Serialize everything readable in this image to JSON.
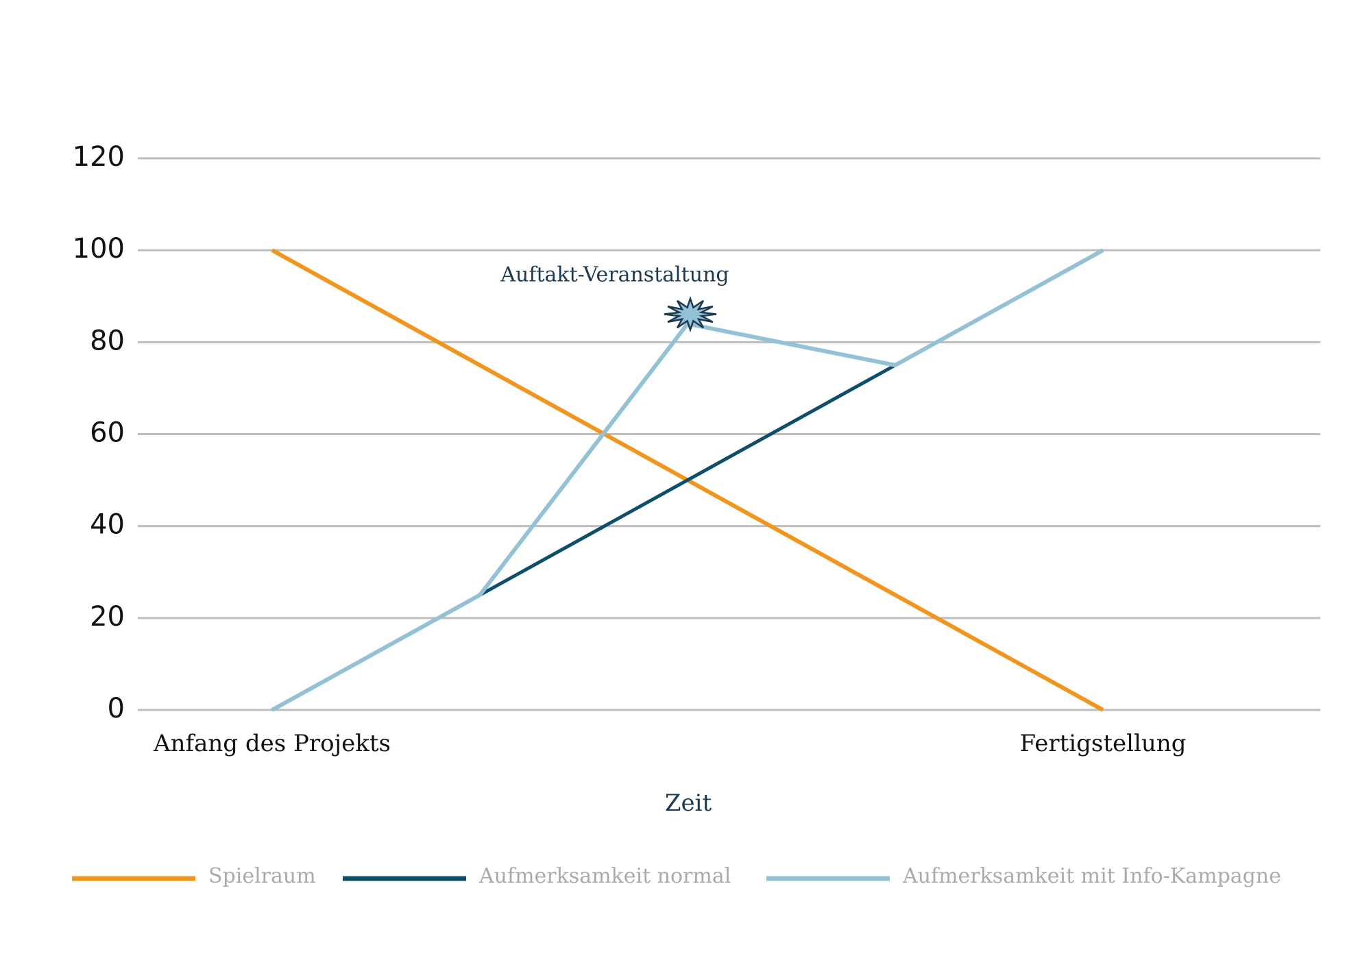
{
  "chart_data": {
    "type": "line",
    "x_label": "Zeit",
    "categories": [
      "Anfang des Projekts",
      null,
      null,
      null,
      "Fertigstellung"
    ],
    "series": [
      {
        "name": "Spielraum",
        "color": "#f0961e",
        "values": [
          100,
          75,
          50,
          25,
          0
        ]
      },
      {
        "name": "Aufmerksamkeit normal",
        "color": "#0d4f6a",
        "values": [
          0,
          25,
          50,
          75,
          100
        ]
      },
      {
        "name": "Aufmerksamkeit mit Info-Kampagne",
        "color": "#93c1d6",
        "values": [
          0,
          25,
          84,
          75,
          100
        ]
      }
    ],
    "annotation": {
      "text": "Auftakt-Veranstaltung",
      "series": 2,
      "index": 2
    },
    "ylim": [
      0,
      120
    ],
    "yticks": [
      0,
      20,
      40,
      60,
      80,
      100,
      120
    ],
    "grid": true,
    "legend": "bottom"
  }
}
